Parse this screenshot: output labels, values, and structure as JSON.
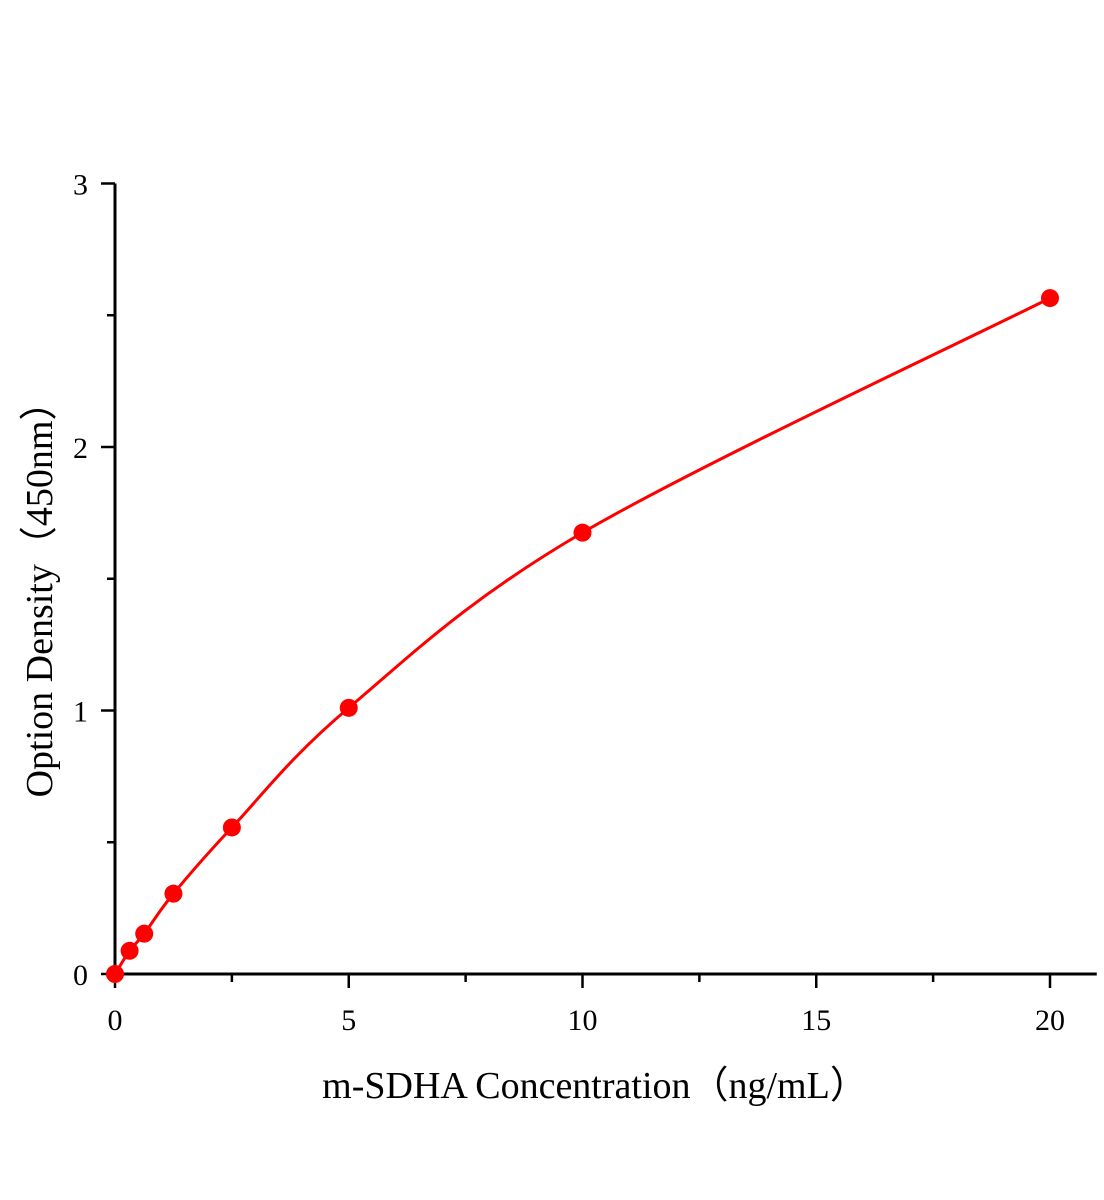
{
  "chart_data": {
    "type": "scatter",
    "title": "",
    "xlabel": "m-SDHA Concentration（ng/mL）",
    "ylabel": "Option Density（450nm）",
    "xlim": [
      0,
      21
    ],
    "ylim": [
      0,
      3
    ],
    "x_ticks": [
      0,
      5,
      10,
      15,
      20
    ],
    "y_ticks": [
      0,
      1,
      2,
      3
    ],
    "x_minor_step": 2.5,
    "y_minor_step": 0.5,
    "grid": false,
    "fit_line": "smooth curve through points",
    "color": "#ff0000",
    "series": [
      {
        "x": [
          0,
          0.3125,
          0.625,
          1.25,
          2.5,
          5,
          10,
          20
        ],
        "y": [
          0.0,
          0.088,
          0.153,
          0.305,
          0.556,
          1.01,
          1.675,
          2.565
        ]
      }
    ]
  }
}
